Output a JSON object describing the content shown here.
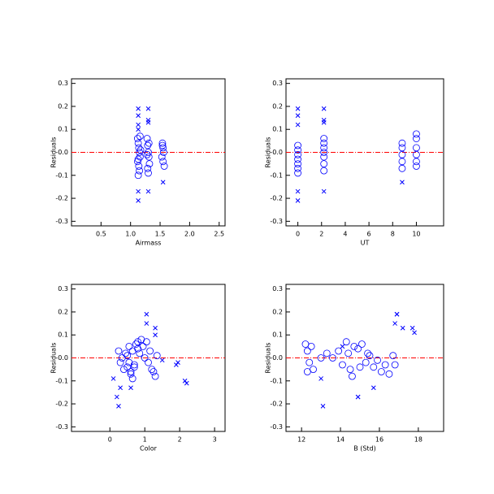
{
  "chart_data": [
    {
      "type": "scatter",
      "x_label": "Airmass",
      "y_label": "Residuals",
      "xlim": [
        0,
        2.6
      ],
      "ylim": [
        -0.32,
        0.32
      ],
      "xticks": [
        0.5,
        {
          "value": 1,
          "label": "1.0"
        },
        1.5,
        {
          "value": 2,
          "label": "2.0"
        },
        2.5
      ],
      "yticks": [
        0.3,
        0.2,
        0.1,
        {
          "value": 0,
          "label": "-0.0"
        },
        -0.1,
        -0.2,
        -0.3
      ],
      "hline": {
        "value": 0,
        "color": "#ff0000"
      },
      "series": [
        {
          "marker": "circle",
          "color": "#0000ff",
          "x": [
            1.12,
            1.13,
            1.14,
            1.15,
            1.16,
            1.12,
            1.14,
            1.15,
            1.13,
            1.16,
            1.17,
            1.13,
            1.28,
            1.29,
            1.3,
            1.31,
            1.32,
            1.29,
            1.3,
            1.31,
            1.28,
            1.54,
            1.55,
            1.56,
            1.53,
            1.55,
            1.57,
            1.54
          ],
          "values": [
            0.06,
            0.04,
            0.02,
            0.0,
            -0.02,
            -0.04,
            -0.06,
            -0.08,
            -0.1,
            0.07,
            0.01,
            -0.03,
            0.06,
            0.03,
            0.0,
            -0.02,
            -0.05,
            -0.07,
            -0.09,
            0.04,
            -0.01,
            0.04,
            0.02,
            0.0,
            -0.02,
            -0.04,
            -0.06,
            0.03
          ]
        },
        {
          "marker": "x",
          "color": "#0000ff",
          "x": [
            1.13,
            1.13,
            1.13,
            1.13,
            1.13,
            1.13,
            1.3,
            1.3,
            1.3,
            1.3,
            1.55
          ],
          "values": [
            0.19,
            0.16,
            0.12,
            0.1,
            -0.17,
            -0.21,
            0.19,
            0.14,
            0.13,
            -0.17,
            -0.13
          ]
        }
      ]
    },
    {
      "type": "scatter",
      "x_label": "UT",
      "y_label": "Residuals",
      "xlim": [
        -1,
        12.3
      ],
      "ylim": [
        -0.32,
        0.32
      ],
      "xticks": [
        0,
        2,
        4,
        6,
        8,
        10
      ],
      "yticks": [
        0.3,
        0.2,
        0.1,
        {
          "value": 0,
          "label": "-0.0"
        },
        -0.1,
        -0.2,
        -0.3
      ],
      "hline": {
        "value": 0,
        "color": "#ff0000"
      },
      "series": [
        {
          "marker": "circle",
          "color": "#0000ff",
          "x": [
            0,
            0,
            0,
            0,
            0,
            0,
            0,
            2.2,
            2.2,
            2.2,
            2.2,
            2.2,
            2.2,
            2.2,
            8.8,
            8.8,
            8.8,
            8.8,
            8.8,
            10,
            10,
            10,
            10,
            10,
            10
          ],
          "values": [
            0.03,
            0.01,
            -0.01,
            -0.03,
            -0.05,
            -0.07,
            -0.09,
            0.06,
            0.04,
            0.02,
            0.0,
            -0.02,
            -0.05,
            -0.08,
            0.04,
            0.02,
            -0.01,
            -0.04,
            -0.07,
            0.08,
            0.06,
            0.02,
            -0.01,
            -0.04,
            -0.06
          ]
        },
        {
          "marker": "x",
          "color": "#0000ff",
          "x": [
            0,
            0,
            0,
            0,
            0,
            2.2,
            2.2,
            2.2,
            2.2,
            8.8
          ],
          "values": [
            0.19,
            0.16,
            0.12,
            -0.17,
            -0.21,
            0.19,
            0.14,
            0.13,
            -0.17,
            -0.13
          ]
        }
      ]
    },
    {
      "type": "scatter",
      "x_label": "Color",
      "y_label": "Residuals",
      "xlim": [
        -1.1,
        3.3
      ],
      "ylim": [
        -0.32,
        0.32
      ],
      "xticks": [
        0,
        1,
        2,
        3
      ],
      "yticks": [
        0.3,
        0.2,
        0.1,
        {
          "value": 0,
          "label": "-0.0"
        },
        -0.1,
        -0.2,
        -0.3
      ],
      "hline": {
        "value": 0,
        "color": "#ff0000"
      },
      "series": [
        {
          "marker": "circle",
          "color": "#0000ff",
          "x": [
            0.25,
            0.3,
            0.35,
            0.4,
            0.45,
            0.5,
            0.55,
            0.6,
            0.65,
            0.7,
            0.75,
            0.8,
            0.85,
            0.9,
            0.95,
            1.0,
            1.05,
            1.1,
            1.15,
            1.2,
            1.25,
            1.3,
            1.35,
            0.55,
            0.6,
            0.65,
            0.5,
            0.7,
            0.8
          ],
          "values": [
            0.03,
            -0.02,
            0.0,
            -0.05,
            0.02,
            -0.04,
            0.05,
            -0.06,
            0.03,
            -0.03,
            0.06,
            0.07,
            0.02,
            0.08,
            0.05,
            0.0,
            0.07,
            -0.02,
            0.03,
            -0.05,
            -0.06,
            -0.08,
            0.01,
            -0.02,
            -0.07,
            -0.09,
            0.01,
            -0.04,
            0.04
          ]
        },
        {
          "marker": "x",
          "color": "#0000ff",
          "x": [
            0.2,
            0.25,
            0.3,
            0.1,
            0.6,
            1.05,
            1.05,
            1.3,
            1.3,
            1.9,
            1.95,
            2.15,
            2.2,
            1.5
          ],
          "values": [
            -0.17,
            -0.21,
            -0.13,
            -0.09,
            -0.13,
            0.19,
            0.15,
            0.13,
            0.1,
            -0.03,
            -0.02,
            -0.1,
            -0.11,
            -0.01
          ]
        }
      ]
    },
    {
      "type": "scatter",
      "x_label": "B (Std)",
      "y_label": "Residuals",
      "xlim": [
        11.2,
        19.3
      ],
      "ylim": [
        -0.32,
        0.32
      ],
      "xticks": [
        12,
        14,
        16,
        18
      ],
      "yticks": [
        0.3,
        0.2,
        0.1,
        {
          "value": 0,
          "label": "-0.0"
        },
        -0.1,
        -0.2,
        -0.3
      ],
      "hline": {
        "value": 0,
        "color": "#ff0000"
      },
      "series": [
        {
          "marker": "circle",
          "color": "#0000ff",
          "x": [
            12.2,
            12.3,
            12.4,
            12.5,
            12.6,
            13.0,
            13.3,
            13.6,
            13.9,
            14.1,
            14.3,
            14.5,
            14.7,
            14.9,
            15.1,
            15.3,
            15.5,
            15.7,
            15.9,
            16.1,
            16.3,
            16.5,
            16.7,
            16.8,
            14.4,
            14.6,
            15.0,
            15.4,
            12.3
          ],
          "values": [
            0.06,
            0.03,
            -0.02,
            0.05,
            -0.05,
            0.0,
            0.02,
            0.0,
            0.03,
            -0.03,
            0.07,
            -0.05,
            0.05,
            0.04,
            0.06,
            -0.02,
            0.01,
            -0.04,
            -0.01,
            -0.06,
            -0.03,
            -0.07,
            0.01,
            -0.03,
            0.02,
            -0.08,
            -0.04,
            0.02,
            -0.06
          ]
        },
        {
          "marker": "x",
          "color": "#0000ff",
          "x": [
            13.1,
            13.0,
            14.9,
            14.9,
            15.7,
            16.8,
            16.9,
            16.9,
            17.2,
            17.7,
            17.8,
            14.1
          ],
          "values": [
            -0.21,
            -0.09,
            -0.17,
            -0.17,
            -0.13,
            0.15,
            0.19,
            0.19,
            0.13,
            0.13,
            0.11,
            0.05
          ]
        }
      ]
    }
  ]
}
